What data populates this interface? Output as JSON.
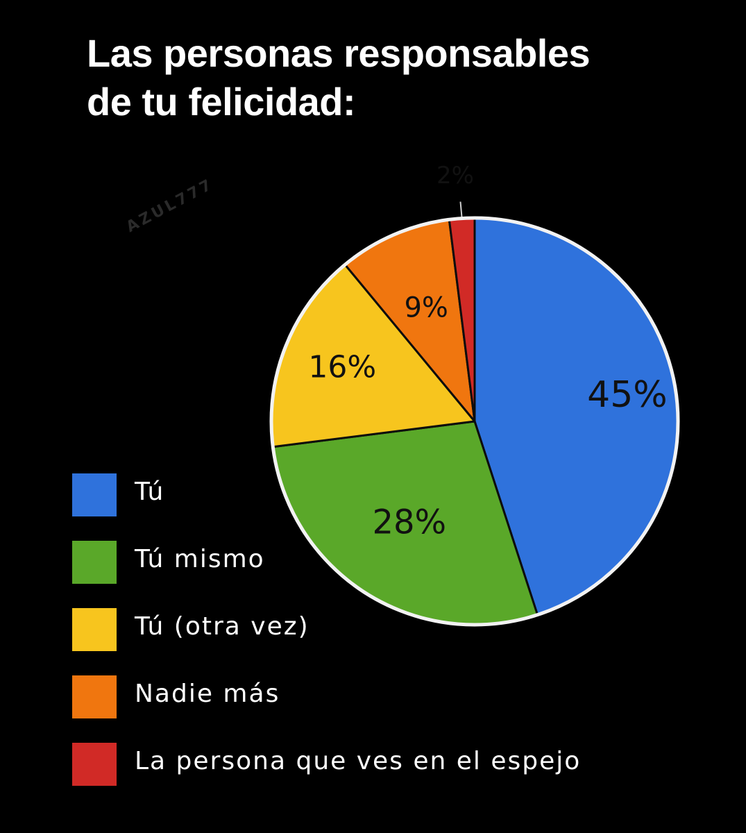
{
  "title_lines": [
    "Las personas responsables",
    "de tu felicidad:"
  ],
  "watermark": "AZUL777",
  "chart_data": {
    "type": "pie",
    "title": "Las personas responsables de tu felicidad:",
    "legend_position": "bottom-left",
    "slices": [
      {
        "label": "Tú",
        "value": 45,
        "value_label": "45%",
        "color": "#2f72dc"
      },
      {
        "label": "Tú mismo",
        "value": 28,
        "value_label": "28%",
        "color": "#5aa829"
      },
      {
        "label": "Tú (otra vez)",
        "value": 16,
        "value_label": "16%",
        "color": "#f7c51e"
      },
      {
        "label": "Nadie más",
        "value": 9,
        "value_label": "9%",
        "color": "#f0760f"
      },
      {
        "label": "La persona que ves en el espejo",
        "value": 2,
        "value_label": "2%",
        "color": "#d12a26"
      }
    ]
  }
}
